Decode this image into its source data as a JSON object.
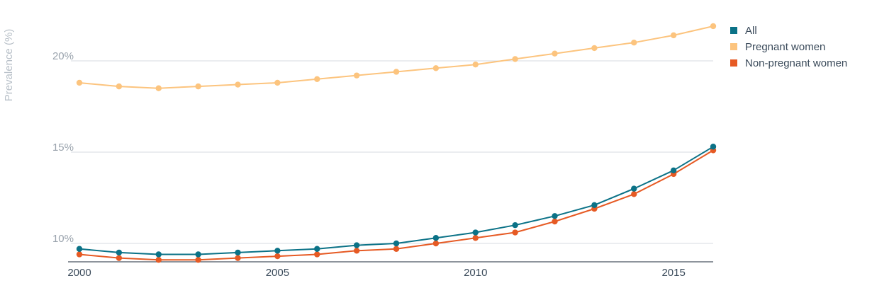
{
  "chart_data": {
    "type": "line",
    "ylabel": "Prevalence (%)",
    "xlabel": "",
    "x": [
      2000,
      2001,
      2002,
      2003,
      2004,
      2005,
      2006,
      2007,
      2008,
      2009,
      2010,
      2011,
      2012,
      2013,
      2014,
      2015,
      2016
    ],
    "xticks": [
      2000,
      2005,
      2010,
      2015
    ],
    "xtick_labels": [
      "2000",
      "2005",
      "2010",
      "2015"
    ],
    "yticks": [
      10,
      15,
      20
    ],
    "ytick_labels": [
      "10%",
      "15%",
      "20%"
    ],
    "xlim": [
      2000,
      2016
    ],
    "ylim": [
      9,
      22
    ],
    "grid": true,
    "legend_position": "top-right",
    "series": [
      {
        "name": "All",
        "color": "#0b7287",
        "values": [
          9.7,
          9.5,
          9.4,
          9.4,
          9.5,
          9.6,
          9.7,
          9.9,
          10.0,
          10.3,
          10.6,
          11.0,
          11.5,
          12.1,
          13.0,
          14.0,
          15.3
        ]
      },
      {
        "name": "Pregnant women",
        "color": "#fcc47e",
        "values": [
          18.8,
          18.6,
          18.5,
          18.6,
          18.7,
          18.8,
          19.0,
          19.2,
          19.4,
          19.6,
          19.8,
          20.1,
          20.4,
          20.7,
          21.0,
          21.4,
          21.9
        ]
      },
      {
        "name": "Non-pregnant women",
        "color": "#e65a24",
        "values": [
          9.4,
          9.2,
          9.1,
          9.1,
          9.2,
          9.3,
          9.4,
          9.6,
          9.7,
          10.0,
          10.3,
          10.6,
          11.2,
          11.9,
          12.7,
          13.8,
          15.1
        ]
      }
    ]
  }
}
